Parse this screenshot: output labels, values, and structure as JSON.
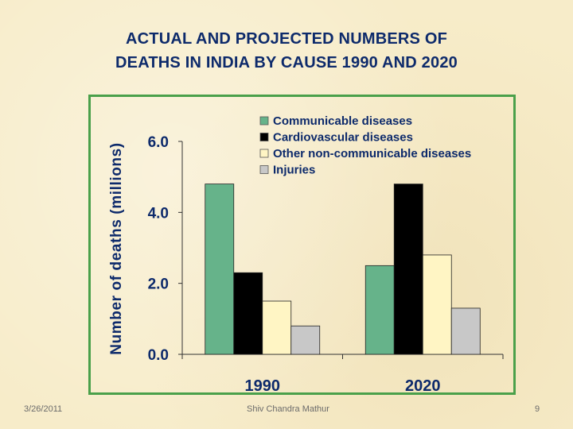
{
  "slide": {
    "title_line1": "ACTUAL AND PROJECTED NUMBERS OF",
    "title_line2": "DEATHS IN INDIA BY CAUSE 1990 AND 2020",
    "date": "3/26/2011",
    "author": "Shiv Chandra Mathur",
    "page_number": "9"
  },
  "colors": {
    "title": "#0d2a6b",
    "frame": "#4aa04a",
    "axis_text": "#0d2a6b"
  },
  "chart_data": {
    "type": "bar",
    "title": "",
    "xlabel": "",
    "ylabel": "Number of deaths (millions)",
    "ylim": [
      0,
      6
    ],
    "yticks": [
      {
        "value": 0,
        "label": "0.0"
      },
      {
        "value": 2,
        "label": "2.0"
      },
      {
        "value": 4,
        "label": "4.0"
      },
      {
        "value": 6,
        "label": "6.0"
      }
    ],
    "grid": false,
    "legend_position": "top-right",
    "categories": [
      "1990",
      "2020"
    ],
    "series": [
      {
        "name": "Communicable diseases",
        "color": "#66b38a",
        "values": [
          4.8,
          2.5
        ]
      },
      {
        "name": "Cardiovascular diseases",
        "color": "#000000",
        "values": [
          2.3,
          4.8
        ]
      },
      {
        "name": "Other non-communicable diseases",
        "color": "#fff5c4",
        "values": [
          1.5,
          2.8
        ]
      },
      {
        "name": "Injuries",
        "color": "#c8c8c8",
        "values": [
          0.8,
          1.3
        ]
      }
    ]
  }
}
